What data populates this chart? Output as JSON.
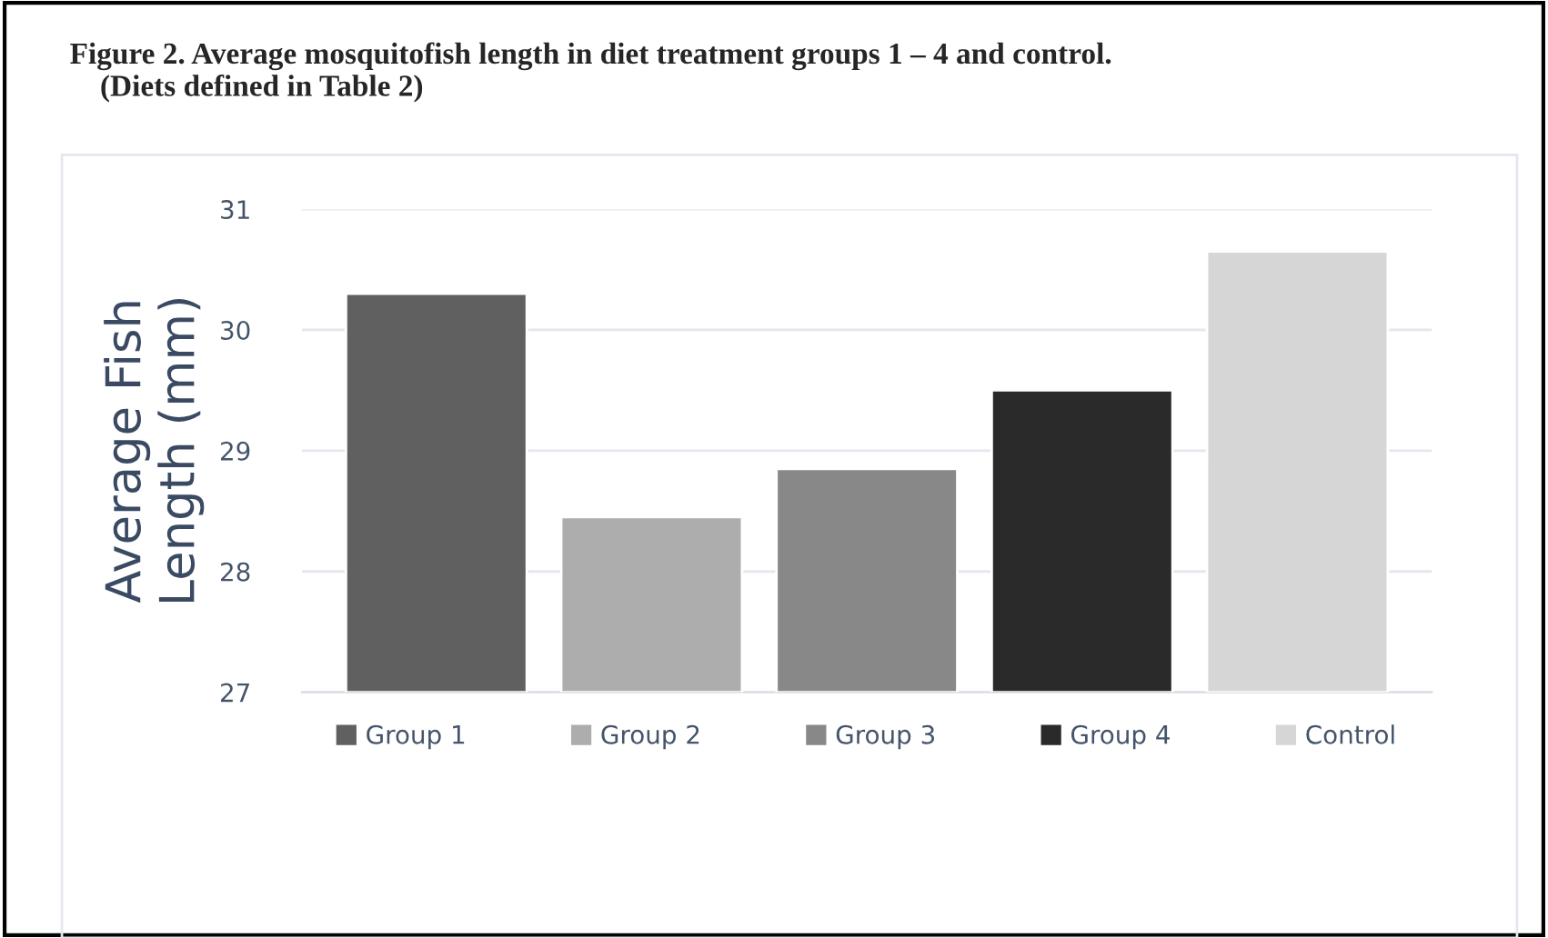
{
  "chart_data": {
    "type": "bar",
    "title": "Figure 2. Average mosquitofish length in diet treatment groups 1 – 4 and control.\n    (Diets defined in Table 2)",
    "ylabel": "Average Fish\nLength (mm)",
    "categories": [
      null
    ],
    "series": [
      {
        "name": "Group 1",
        "color": "#606060",
        "values": [
          30.3
        ]
      },
      {
        "name": "Group 2",
        "color": "#adadad",
        "values": [
          28.45
        ]
      },
      {
        "name": "Group 3",
        "color": "#888888",
        "values": [
          28.85
        ]
      },
      {
        "name": "Group 4",
        "color": "#2a2a2a",
        "values": [
          29.5
        ]
      },
      {
        "name": "Control",
        "color": "#d6d6d6",
        "values": [
          30.65
        ]
      }
    ],
    "ylim": [
      27,
      31
    ],
    "yticks": [
      27,
      28,
      29,
      30,
      31
    ],
    "grid": "y",
    "legend": "bottom"
  }
}
